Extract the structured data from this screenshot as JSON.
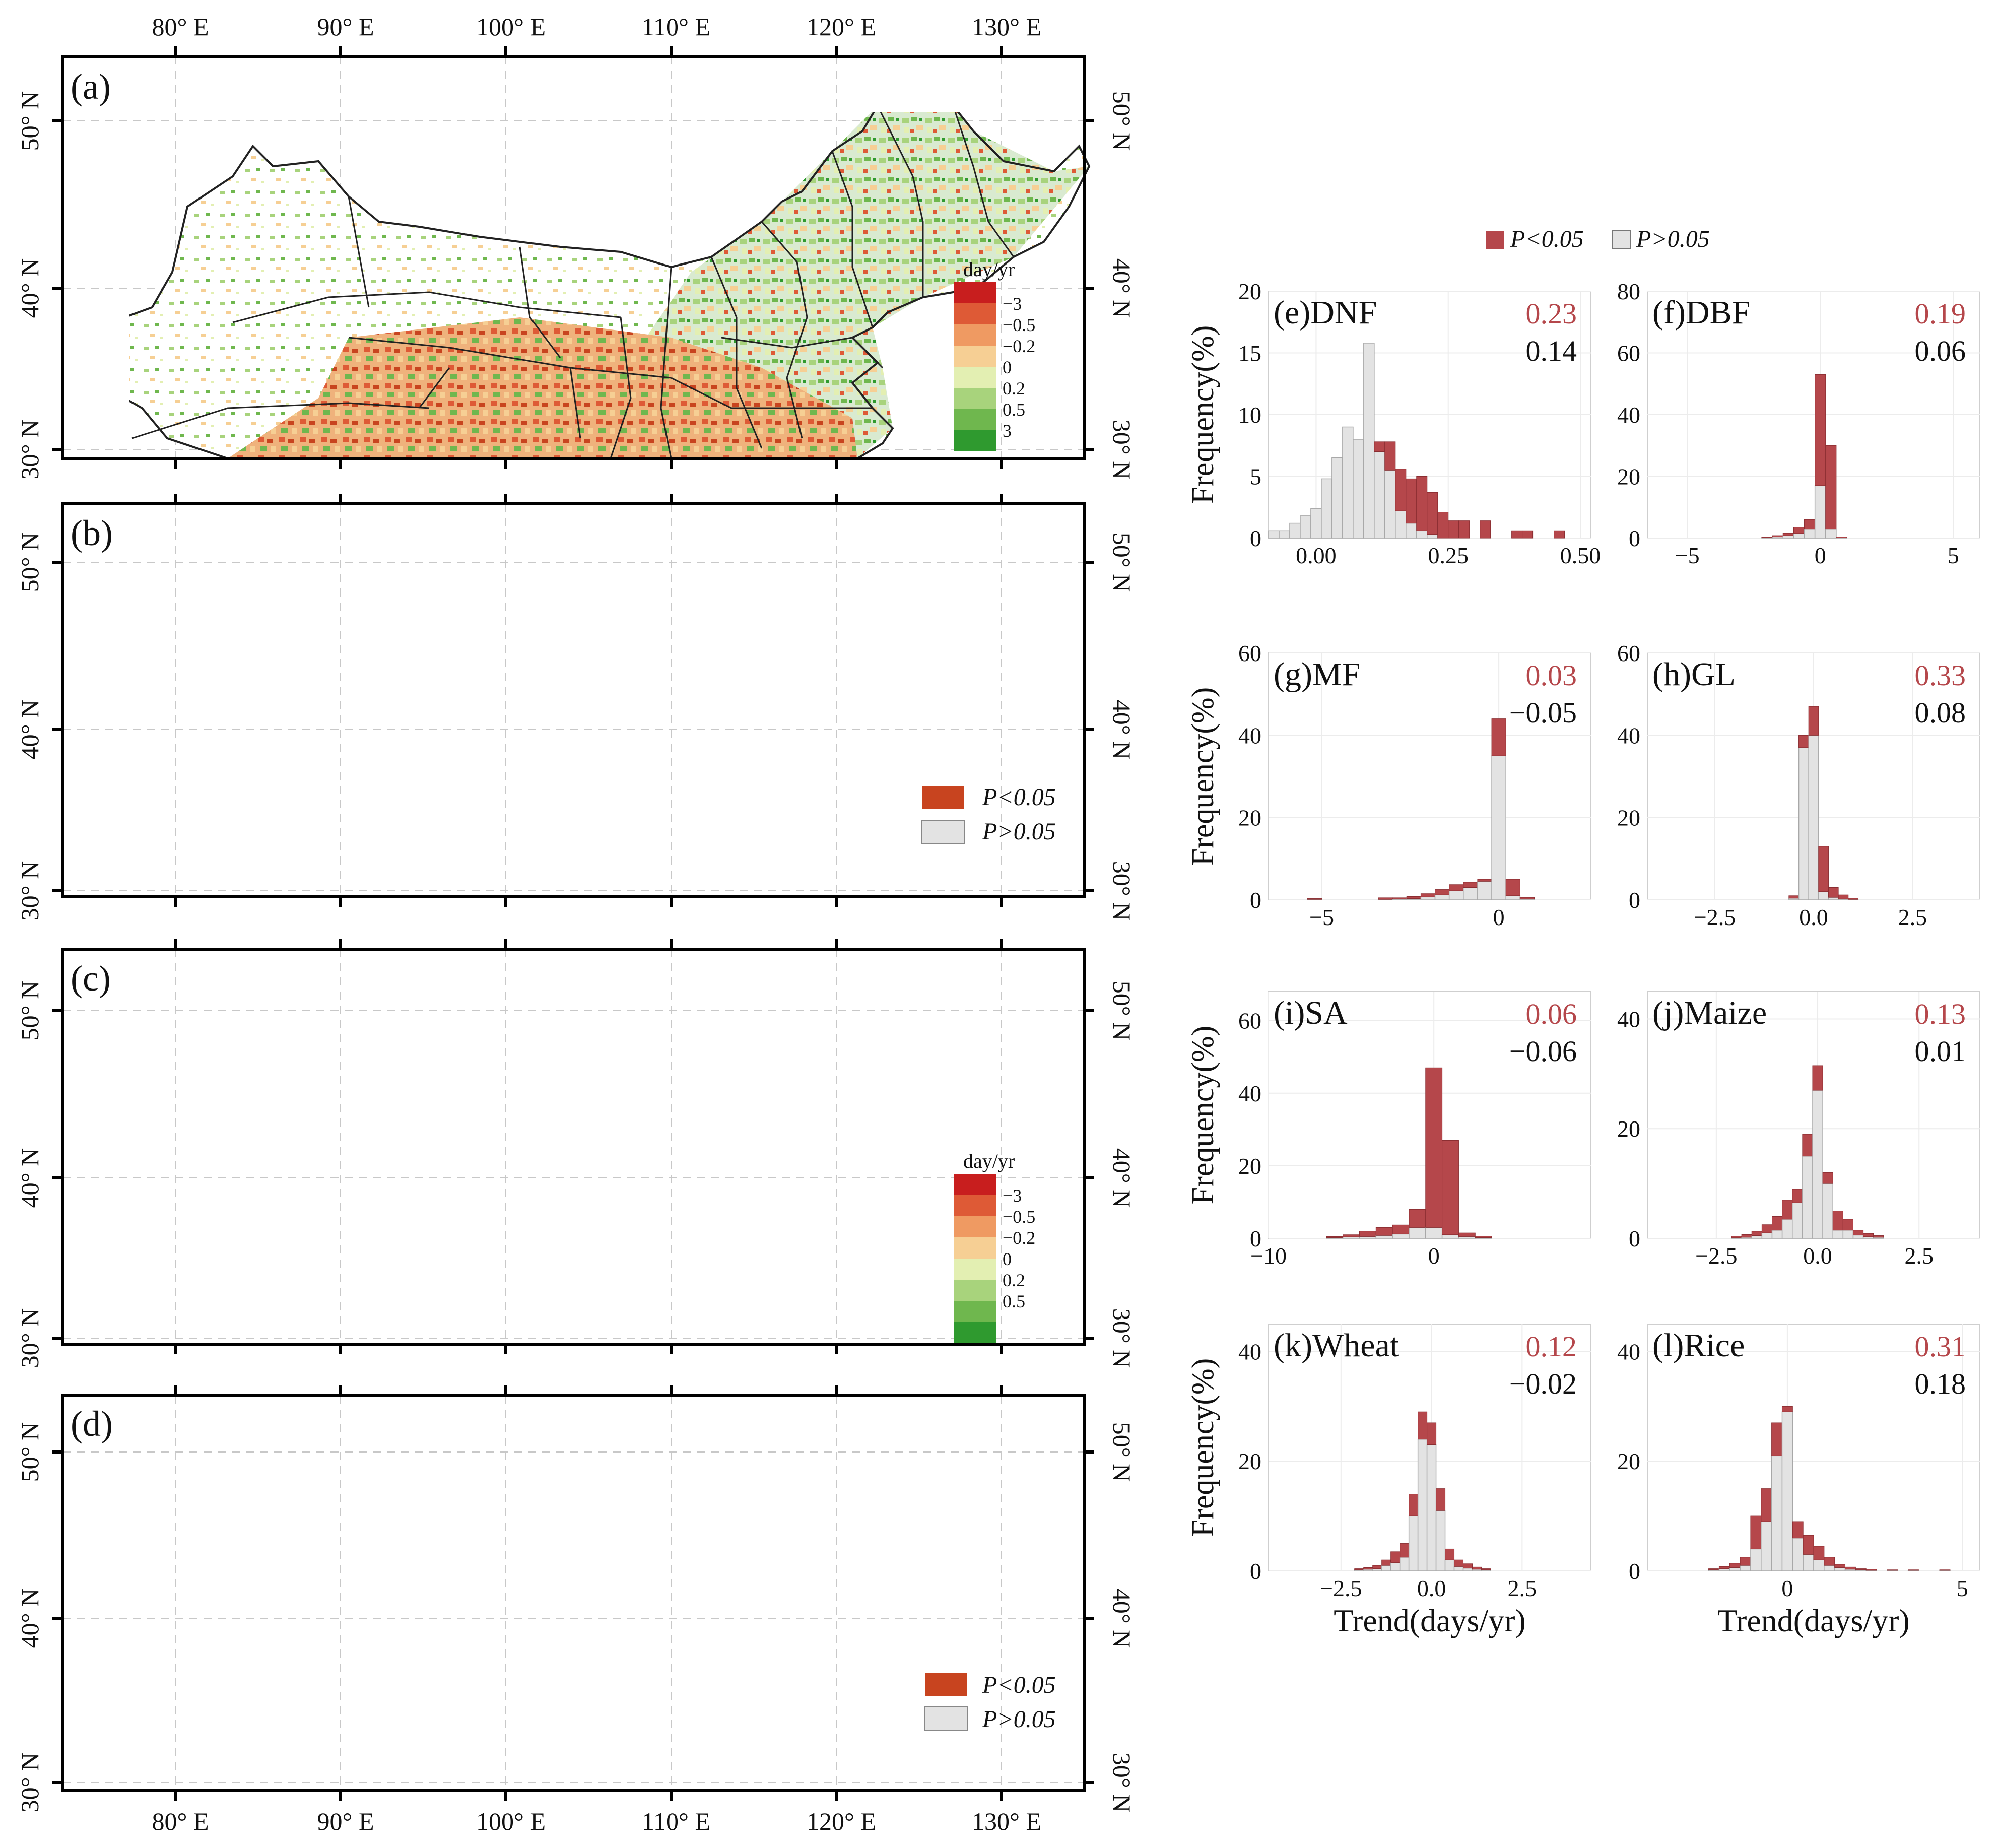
{
  "figure": {
    "lon_ticks": [
      "80° E",
      "90° E",
      "100° E",
      "110° E",
      "120° E",
      "130° E"
    ],
    "lat_ticks": [
      "50° N",
      "40° N",
      "30° N"
    ],
    "maps": [
      {
        "label": "(a)",
        "type": "trend"
      },
      {
        "label": "(b)",
        "type": "significance"
      },
      {
        "label": "(c)",
        "type": "trend"
      },
      {
        "label": "(d)",
        "type": "significance"
      }
    ],
    "trend_legend": {
      "title": "day/yr",
      "labels": [
        "−3",
        "−0.5",
        "−0.2",
        "0",
        "0.2",
        "0.5",
        "3"
      ],
      "colors": [
        "#c81e1e",
        "#de5a36",
        "#ef9a62",
        "#f6cf94",
        "#e3efb2",
        "#a8d37c",
        "#6fb74e",
        "#2f9a2f"
      ]
    },
    "significance_legend": {
      "items": [
        {
          "label": "P<0.05",
          "color": "#c8441f"
        },
        {
          "label": "P>0.05",
          "color": "#e3e3e3"
        }
      ]
    },
    "hist_legend": {
      "items": [
        {
          "label": "P<0.05",
          "color": "#b5474b"
        },
        {
          "label": "P>0.05",
          "color": "#e3e3e3"
        }
      ]
    },
    "ylabel": "Frequency(%)",
    "xlabel": "Trend(days/yr)"
  },
  "chart_data": [
    {
      "type": "bar",
      "title": "(e)DNF",
      "sig_value": "0.23",
      "nonsig_value": "0.14",
      "xlim": [
        -0.09,
        0.52
      ],
      "ylim": [
        0,
        20
      ],
      "xticks": [
        0.0,
        0.25,
        0.5
      ],
      "xtick_labels": [
        "0.00",
        "0.25",
        "0.50"
      ],
      "yticks": [
        0,
        5,
        10,
        15,
        20
      ],
      "ytick_labels": [
        "0",
        "5",
        "10",
        "15",
        "20"
      ],
      "bins": [
        [
          -0.08,
          0.6,
          0
        ],
        [
          -0.06,
          0.6,
          0
        ],
        [
          -0.04,
          1.2,
          0
        ],
        [
          -0.02,
          1.8,
          0
        ],
        [
          0.0,
          2.4,
          0
        ],
        [
          0.02,
          4.8,
          0
        ],
        [
          0.04,
          6.5,
          0
        ],
        [
          0.06,
          9.0,
          0
        ],
        [
          0.08,
          8.0,
          0
        ],
        [
          0.1,
          15.8,
          0
        ],
        [
          0.12,
          7.0,
          0.8
        ],
        [
          0.14,
          5.5,
          2.3
        ],
        [
          0.16,
          2.2,
          3.4
        ],
        [
          0.18,
          1.2,
          3.6
        ],
        [
          0.2,
          0.6,
          4.4
        ],
        [
          0.22,
          0.3,
          3.4
        ],
        [
          0.24,
          0,
          2.1
        ],
        [
          0.26,
          0,
          1.4
        ],
        [
          0.28,
          0,
          1.4
        ],
        [
          0.32,
          0,
          1.4
        ],
        [
          0.38,
          0,
          0.6
        ],
        [
          0.4,
          0,
          0.6
        ],
        [
          0.46,
          0,
          0.6
        ]
      ]
    },
    {
      "type": "bar",
      "title": "(f)DBF",
      "sig_value": "0.19",
      "nonsig_value": "0.06",
      "xlim": [
        -6.5,
        6
      ],
      "ylim": [
        0,
        80
      ],
      "xticks": [
        -5,
        0,
        5
      ],
      "xtick_labels": [
        "−5",
        "0",
        "5"
      ],
      "yticks": [
        0,
        20,
        40,
        60,
        80
      ],
      "ytick_labels": [
        "0",
        "20",
        "40",
        "60",
        "80"
      ],
      "bins": [
        [
          -2.0,
          0.2,
          0.2
        ],
        [
          -1.6,
          0.4,
          0.4
        ],
        [
          -1.2,
          0.8,
          0.8
        ],
        [
          -0.8,
          1.5,
          2.0
        ],
        [
          -0.4,
          3.0,
          3.0
        ],
        [
          0.0,
          17.0,
          36.0
        ],
        [
          0.4,
          3.0,
          27.0
        ],
        [
          0.8,
          0.1,
          0.3
        ]
      ]
    },
    {
      "type": "bar",
      "title": "(g)MF",
      "sig_value": "0.03",
      "nonsig_value": "−0.05",
      "xlim": [
        -6.5,
        2.6
      ],
      "ylim": [
        0,
        60
      ],
      "xticks": [
        -5,
        0
      ],
      "xtick_labels": [
        "−5",
        "0"
      ],
      "yticks": [
        0,
        20,
        40,
        60
      ],
      "ytick_labels": [
        "0",
        "20",
        "40",
        "60"
      ],
      "bins": [
        [
          -5.2,
          0.1,
          0.2
        ],
        [
          -3.2,
          0.1,
          0.4
        ],
        [
          -2.8,
          0.2,
          0.3
        ],
        [
          -2.4,
          0.3,
          0.5
        ],
        [
          -2.0,
          0.7,
          0.8
        ],
        [
          -1.6,
          1.2,
          1.3
        ],
        [
          -1.2,
          2.2,
          1.5
        ],
        [
          -0.8,
          3.0,
          1.3
        ],
        [
          -0.4,
          4.5,
          0.5
        ],
        [
          0.0,
          35.0,
          9.0
        ],
        [
          0.4,
          1.0,
          4.0
        ],
        [
          0.8,
          0.2,
          0.4
        ]
      ]
    },
    {
      "type": "bar",
      "title": "(h)GL",
      "sig_value": "0.33",
      "nonsig_value": "0.08",
      "xlim": [
        -4.2,
        4.2
      ],
      "ylim": [
        0,
        60
      ],
      "xticks": [
        -2.5,
        0,
        2.5
      ],
      "xtick_labels": [
        "−2.5",
        "0.0",
        "2.5"
      ],
      "yticks": [
        0,
        20,
        40,
        60
      ],
      "ytick_labels": [
        "0",
        "20",
        "40",
        "60"
      ],
      "bins": [
        [
          -0.5,
          0.4,
          0.6
        ],
        [
          -0.25,
          37.0,
          3.0
        ],
        [
          0.0,
          40.0,
          7.0
        ],
        [
          0.25,
          2.0,
          11.0
        ],
        [
          0.5,
          0.6,
          2.4
        ],
        [
          0.75,
          0.2,
          1.0
        ],
        [
          1.0,
          0.1,
          0.3
        ]
      ]
    },
    {
      "type": "bar",
      "title": "(i)SA",
      "sig_value": "0.06",
      "nonsig_value": "−0.06",
      "xlim": [
        -10,
        9.5
      ],
      "ylim": [
        0,
        68
      ],
      "xticks": [
        -10,
        0
      ],
      "xtick_labels": [
        "−10",
        "0"
      ],
      "yticks": [
        0,
        20,
        40,
        60
      ],
      "ytick_labels": [
        "0",
        "20",
        "40",
        "60"
      ],
      "bins": [
        [
          -6.0,
          0.2,
          0.3
        ],
        [
          -5.0,
          0.4,
          0.6
        ],
        [
          -4.0,
          0.5,
          1.5
        ],
        [
          -3.0,
          0.8,
          2.2
        ],
        [
          -2.0,
          1.2,
          2.5
        ],
        [
          -1.0,
          3.0,
          5.0
        ],
        [
          0.0,
          3.0,
          44.0
        ],
        [
          1.0,
          1.0,
          26.0
        ],
        [
          2.0,
          0.5,
          1.0
        ],
        [
          3.0,
          0.2,
          0.4
        ]
      ]
    },
    {
      "type": "bar",
      "title": "(j)Maize",
      "sig_value": "0.13",
      "nonsig_value": "0.01",
      "xlim": [
        -4.2,
        4.0
      ],
      "ylim": [
        0,
        45
      ],
      "xticks": [
        -2.5,
        0,
        2.5
      ],
      "xtick_labels": [
        "−2.5",
        "0.0",
        "2.5"
      ],
      "yticks": [
        0,
        20,
        40
      ],
      "ytick_labels": [
        "0",
        "20",
        "40"
      ],
      "bins": [
        [
          -2.0,
          0.1,
          0.3
        ],
        [
          -1.75,
          0.2,
          0.5
        ],
        [
          -1.5,
          0.5,
          0.8
        ],
        [
          -1.25,
          1.0,
          1.5
        ],
        [
          -1.0,
          1.5,
          2.5
        ],
        [
          -0.75,
          3.5,
          3.5
        ],
        [
          -0.5,
          6.5,
          2.5
        ],
        [
          -0.25,
          15.0,
          4.0
        ],
        [
          0.0,
          27.0,
          4.5
        ],
        [
          0.25,
          10.0,
          2.0
        ],
        [
          0.5,
          1.5,
          3.5
        ],
        [
          0.75,
          1.5,
          2.0
        ],
        [
          1.0,
          0.6,
          0.9
        ],
        [
          1.25,
          0.3,
          0.6
        ],
        [
          1.5,
          0.2,
          0.3
        ]
      ]
    },
    {
      "type": "bar",
      "title": "(k)Wheat",
      "sig_value": "0.12",
      "nonsig_value": "−0.02",
      "xlim": [
        -4.5,
        4.4
      ],
      "ylim": [
        0,
        45
      ],
      "xticks": [
        -2.5,
        0,
        2.5
      ],
      "xtick_labels": [
        "−2.5",
        "0.0",
        "2.5"
      ],
      "yticks": [
        0,
        20,
        40
      ],
      "ytick_labels": [
        "0",
        "20",
        "40"
      ],
      "bins": [
        [
          -2.0,
          0.2,
          0.2
        ],
        [
          -1.75,
          0.3,
          0.3
        ],
        [
          -1.5,
          0.4,
          0.6
        ],
        [
          -1.25,
          1.0,
          1.0
        ],
        [
          -1.0,
          1.5,
          2.0
        ],
        [
          -0.75,
          2.5,
          2.5
        ],
        [
          -0.5,
          10.0,
          4.0
        ],
        [
          -0.25,
          24.0,
          5.0
        ],
        [
          0.0,
          23.0,
          4.0
        ],
        [
          0.25,
          11.0,
          4.0
        ],
        [
          0.5,
          2.0,
          2.0
        ],
        [
          0.75,
          0.8,
          1.2
        ],
        [
          1.0,
          0.5,
          0.8
        ],
        [
          1.25,
          0.3,
          0.4
        ],
        [
          1.5,
          0.2,
          0.2
        ]
      ]
    },
    {
      "type": "bar",
      "title": "(l)Rice",
      "sig_value": "0.31",
      "nonsig_value": "0.18",
      "xlim": [
        -4.0,
        5.5
      ],
      "ylim": [
        0,
        45
      ],
      "xticks": [
        0,
        5
      ],
      "xtick_labels": [
        "0",
        "5"
      ],
      "yticks": [
        0,
        20,
        40
      ],
      "ytick_labels": [
        "0",
        "20",
        "40"
      ],
      "bins": [
        [
          -2.1,
          0.2,
          0.2
        ],
        [
          -1.8,
          0.4,
          0.4
        ],
        [
          -1.5,
          0.6,
          0.8
        ],
        [
          -1.2,
          1.0,
          1.5
        ],
        [
          -0.9,
          4.0,
          6.0
        ],
        [
          -0.6,
          9.0,
          6.0
        ],
        [
          -0.3,
          21.0,
          6.0
        ],
        [
          0.0,
          29.0,
          1.0
        ],
        [
          0.3,
          6.0,
          3.0
        ],
        [
          0.6,
          3.0,
          3.5
        ],
        [
          0.9,
          2.0,
          2.5
        ],
        [
          1.2,
          1.0,
          1.5
        ],
        [
          1.5,
          0.6,
          0.6
        ],
        [
          1.8,
          0.3,
          0.4
        ],
        [
          2.1,
          0.2,
          0.2
        ],
        [
          2.4,
          0.1,
          0.2
        ],
        [
          3.0,
          0.1,
          0.1
        ],
        [
          3.6,
          0.1,
          0.1
        ],
        [
          4.5,
          0.1,
          0.1
        ]
      ]
    }
  ]
}
